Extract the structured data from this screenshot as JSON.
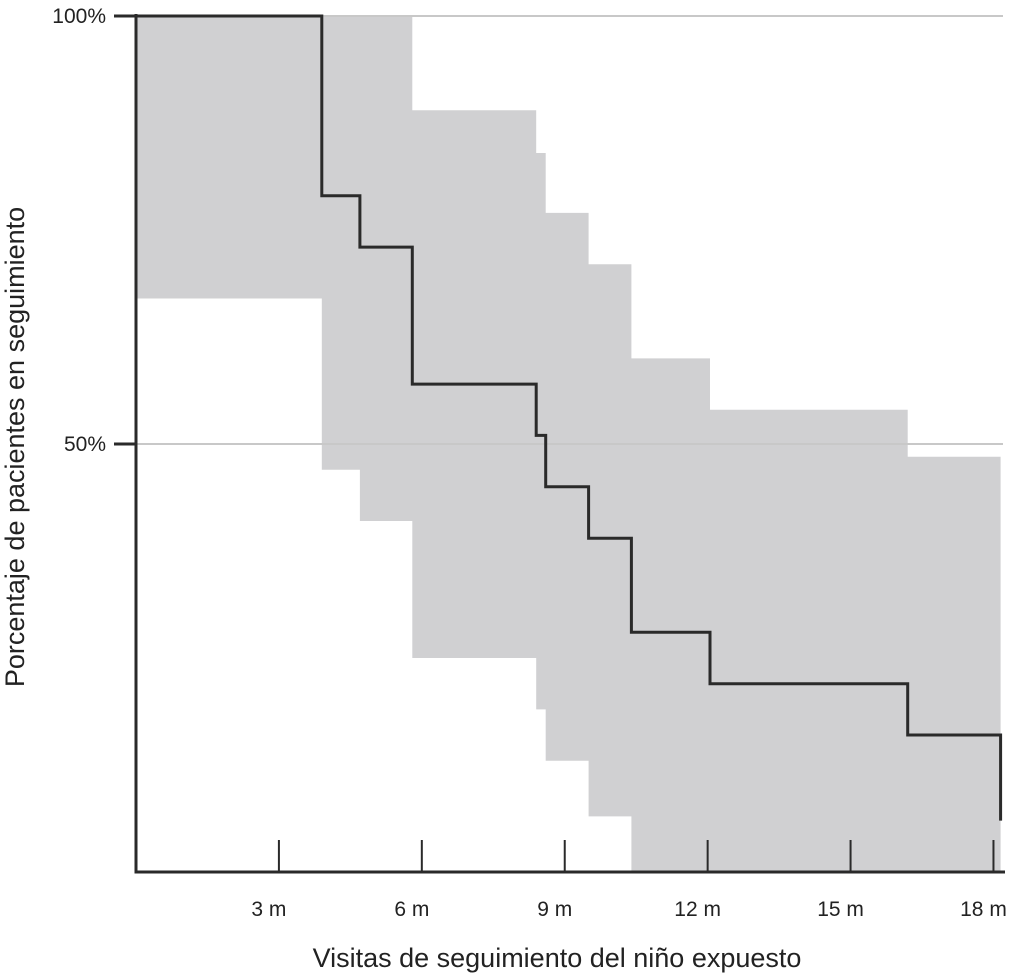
{
  "chart_data": {
    "type": "step",
    "title": "",
    "xlabel": "Visitas de seguimiento del niño expuesto",
    "ylabel": "Porcentaje de pacientes en seguimiento",
    "x_unit": "months",
    "xlim": [
      0,
      18.2
    ],
    "ylim": [
      0,
      100
    ],
    "x_ticks": [
      {
        "value": 3,
        "label": "3 m"
      },
      {
        "value": 6,
        "label": "6 m"
      },
      {
        "value": 9,
        "label": "9 m"
      },
      {
        "value": 12,
        "label": "12 m"
      },
      {
        "value": 15,
        "label": "15 m"
      },
      {
        "value": 18,
        "label": "18 m"
      }
    ],
    "y_ticks": [
      {
        "value": 50,
        "label": "50%"
      },
      {
        "value": 100,
        "label": "100%"
      }
    ],
    "grid": {
      "horizontal_at": [
        50,
        100
      ],
      "vertical": false
    },
    "series": [
      {
        "kind": "step-curve",
        "steps": [
          {
            "x": 0,
            "y": 100
          },
          {
            "x": 3.9,
            "y": 79
          },
          {
            "x": 4.7,
            "y": 73
          },
          {
            "x": 5.8,
            "y": 57
          },
          {
            "x": 8.4,
            "y": 51
          },
          {
            "x": 8.6,
            "y": 45
          },
          {
            "x": 9.5,
            "y": 39
          },
          {
            "x": 10.4,
            "y": 28
          },
          {
            "x": 12.05,
            "y": 22
          },
          {
            "x": 16.2,
            "y": 16
          },
          {
            "x": 18.15,
            "y": 6
          }
        ],
        "end_x": 18.15
      },
      {
        "kind": "confidence-band",
        "upper": [
          {
            "x": 0,
            "y": 100
          },
          {
            "x": 5.8,
            "y": 89
          },
          {
            "x": 8.4,
            "y": 84
          },
          {
            "x": 8.6,
            "y": 77
          },
          {
            "x": 9.5,
            "y": 71
          },
          {
            "x": 10.4,
            "y": 60
          },
          {
            "x": 12.05,
            "y": 54
          },
          {
            "x": 16.2,
            "y": 48.5
          }
        ],
        "lower": [
          {
            "x": 0,
            "y": 67
          },
          {
            "x": 3.9,
            "y": 47
          },
          {
            "x": 4.7,
            "y": 41
          },
          {
            "x": 5.8,
            "y": 25
          },
          {
            "x": 8.4,
            "y": 19
          },
          {
            "x": 8.6,
            "y": 13
          },
          {
            "x": 9.5,
            "y": 6.5
          },
          {
            "x": 10.4,
            "y": 0
          }
        ],
        "end_x": 18.15
      }
    ],
    "colors": {
      "curve": "#2a2a2a",
      "band": "#d0d0d2",
      "gridline": "#c8c8c8",
      "axis": "#2a2a2a"
    }
  }
}
